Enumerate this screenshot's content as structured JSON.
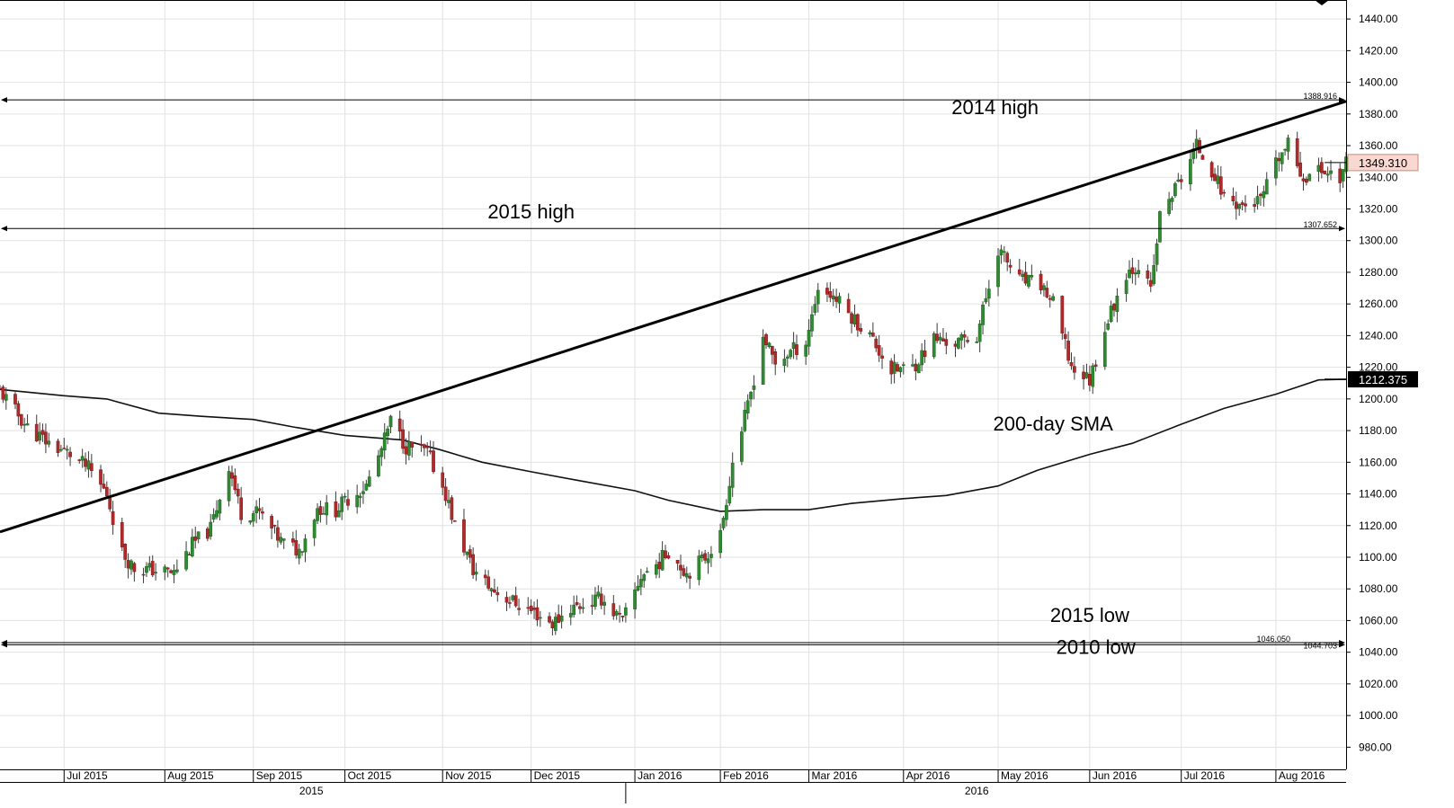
{
  "chart_data": {
    "type": "candlestick",
    "title": "",
    "xlabel": "",
    "ylabel": "",
    "ylim": [
      966,
      1452
    ],
    "y_ticks": [
      980,
      1000,
      1020,
      1040,
      1060,
      1080,
      1100,
      1120,
      1140,
      1160,
      1180,
      1200,
      1220,
      1240,
      1260,
      1280,
      1300,
      1320,
      1340,
      1360,
      1380,
      1400,
      1420,
      1440
    ],
    "y_tick_labels": [
      "980.00",
      "1000.00",
      "1020.00",
      "1040.00",
      "1060.00",
      "1080.00",
      "1100.00",
      "1120.00",
      "1140.00",
      "1160.00",
      "1180.00",
      "1200.00",
      "1220.00",
      "1240.00",
      "1260.00",
      "1280.00",
      "1300.00",
      "1320.00",
      "1340.00",
      "1360.00",
      "1380.00",
      "1400.00",
      "1420.00",
      "1440.00"
    ],
    "x_range": [
      "2015-06-10",
      "2016-08-24"
    ],
    "month_labels": [
      {
        "date": "2015-07-01",
        "label": "Jul 2015"
      },
      {
        "date": "2015-08-03",
        "label": "Aug 2015"
      },
      {
        "date": "2015-09-01",
        "label": "Sep 2015"
      },
      {
        "date": "2015-10-01",
        "label": "Oct 2015"
      },
      {
        "date": "2015-11-02",
        "label": "Nov 2015"
      },
      {
        "date": "2015-12-01",
        "label": "Dec 2015"
      },
      {
        "date": "2016-01-04",
        "label": "Jan 2016"
      },
      {
        "date": "2016-02-01",
        "label": "Feb 2016"
      },
      {
        "date": "2016-03-01",
        "label": "Mar 2016"
      },
      {
        "date": "2016-04-01",
        "label": "Apr 2016"
      },
      {
        "date": "2016-05-02",
        "label": "May 2016"
      },
      {
        "date": "2016-06-01",
        "label": "Jun 2016"
      },
      {
        "date": "2016-07-01",
        "label": "Jul 2016"
      },
      {
        "date": "2016-08-01",
        "label": "Aug 2016"
      }
    ],
    "year_labels": [
      {
        "date": "2015-09-20",
        "label": "2015"
      },
      {
        "date": "2016-04-25",
        "label": "2016"
      }
    ],
    "year_boundary": "2016-01-01",
    "grid": true,
    "current_price": {
      "value": 1349.31,
      "label": "1349.310"
    },
    "sma_price": {
      "value": 1212.375,
      "label": "1212.375"
    },
    "horizontal_levels": [
      {
        "value": 1388.916,
        "label": "1388.916",
        "name": "2014 high"
      },
      {
        "value": 1307.652,
        "label": "1307.652",
        "name": "2015 high"
      },
      {
        "value": 1046.05,
        "label": "1046.050",
        "name": "2015 low"
      },
      {
        "value": 1044.703,
        "label": "1044.703",
        "name": "2010 low"
      }
    ],
    "trendline": {
      "start": {
        "date": "2015-06-10",
        "value": 1116
      },
      "end": {
        "date": "2016-08-24",
        "value": 1388
      }
    },
    "annotations": [
      {
        "text": "2014 high",
        "date": "2016-05-01",
        "value": 1380
      },
      {
        "text": "2015 high",
        "date": "2015-12-01",
        "value": 1314
      },
      {
        "text": "200-day SMA",
        "date": "2016-05-20",
        "value": 1180
      },
      {
        "text": "2015 low",
        "date": "2016-06-01",
        "value": 1059
      },
      {
        "text": "2010 low",
        "date": "2016-06-03",
        "value": 1039
      }
    ],
    "sma": {
      "name": "",
      "points": [
        [
          "2015-06-10",
          1206
        ],
        [
          "2015-07-01",
          1202
        ],
        [
          "2015-07-15",
          1200
        ],
        [
          "2015-08-01",
          1191
        ],
        [
          "2015-08-15",
          1189
        ],
        [
          "2015-09-01",
          1187
        ],
        [
          "2015-09-15",
          1182
        ],
        [
          "2015-10-01",
          1177
        ],
        [
          "2015-10-20",
          1174
        ],
        [
          "2015-11-01",
          1168
        ],
        [
          "2015-11-15",
          1160
        ],
        [
          "2015-12-01",
          1154
        ],
        [
          "2015-12-15",
          1149
        ],
        [
          "2016-01-04",
          1142
        ],
        [
          "2016-01-15",
          1136
        ],
        [
          "2016-02-01",
          1129
        ],
        [
          "2016-02-15",
          1130
        ],
        [
          "2016-03-01",
          1130
        ],
        [
          "2016-03-15",
          1134
        ],
        [
          "2016-04-01",
          1137
        ],
        [
          "2016-04-15",
          1139
        ],
        [
          "2016-05-02",
          1145
        ],
        [
          "2016-05-15",
          1155
        ],
        [
          "2016-06-01",
          1165
        ],
        [
          "2016-06-15",
          1172
        ],
        [
          "2016-07-01",
          1184
        ],
        [
          "2016-07-15",
          1194
        ],
        [
          "2016-08-01",
          1203
        ],
        [
          "2016-08-15",
          1212
        ],
        [
          "2016-08-24",
          1212.4
        ]
      ]
    },
    "candles": {
      "points": [
        [
          "2015-06-10",
          1205
        ],
        [
          "2015-06-19",
          1182
        ],
        [
          "2015-06-26",
          1172
        ],
        [
          "2015-07-03",
          1165
        ],
        [
          "2015-07-09",
          1156
        ],
        [
          "2015-07-15",
          1140
        ],
        [
          "2015-07-20",
          1103
        ],
        [
          "2015-07-24",
          1093
        ],
        [
          "2015-07-30",
          1092
        ],
        [
          "2015-08-06",
          1090
        ],
        [
          "2015-08-12",
          1108
        ],
        [
          "2015-08-18",
          1118
        ],
        [
          "2015-08-24",
          1158
        ],
        [
          "2015-08-28",
          1128
        ],
        [
          "2015-09-03",
          1128
        ],
        [
          "2015-09-10",
          1110
        ],
        [
          "2015-09-16",
          1104
        ],
        [
          "2015-09-22",
          1131
        ],
        [
          "2015-09-28",
          1130
        ],
        [
          "2015-10-02",
          1137
        ],
        [
          "2015-10-08",
          1145
        ],
        [
          "2015-10-13",
          1168
        ],
        [
          "2015-10-16",
          1186
        ],
        [
          "2015-10-21",
          1170
        ],
        [
          "2015-10-28",
          1166
        ],
        [
          "2015-11-03",
          1140
        ],
        [
          "2015-11-06",
          1120
        ],
        [
          "2015-11-12",
          1092
        ],
        [
          "2015-11-18",
          1080
        ],
        [
          "2015-11-25",
          1072
        ],
        [
          "2015-12-02",
          1065
        ],
        [
          "2015-12-08",
          1058
        ],
        [
          "2015-12-14",
          1068
        ],
        [
          "2015-12-18",
          1070
        ],
        [
          "2015-12-24",
          1074
        ],
        [
          "2015-12-31",
          1059
        ],
        [
          "2016-01-06",
          1088
        ],
        [
          "2016-01-11",
          1095
        ],
        [
          "2016-01-15",
          1104
        ],
        [
          "2016-01-21",
          1090
        ],
        [
          "2016-01-27",
          1100
        ],
        [
          "2016-02-01",
          1114
        ],
        [
          "2016-02-05",
          1160
        ],
        [
          "2016-02-10",
          1195
        ],
        [
          "2016-02-15",
          1240
        ],
        [
          "2016-02-19",
          1222
        ],
        [
          "2016-02-24",
          1230
        ],
        [
          "2016-02-29",
          1236
        ],
        [
          "2016-03-04",
          1270
        ],
        [
          "2016-03-09",
          1265
        ],
        [
          "2016-03-15",
          1252
        ],
        [
          "2016-03-21",
          1240
        ],
        [
          "2016-03-28",
          1218
        ],
        [
          "2016-04-04",
          1220
        ],
        [
          "2016-04-11",
          1238
        ],
        [
          "2016-04-18",
          1235
        ],
        [
          "2016-04-25",
          1240
        ],
        [
          "2016-05-02",
          1295
        ],
        [
          "2016-05-09",
          1275
        ],
        [
          "2016-05-16",
          1272
        ],
        [
          "2016-05-20",
          1260
        ],
        [
          "2016-05-26",
          1220
        ],
        [
          "2016-06-01",
          1212
        ],
        [
          "2016-06-06",
          1245
        ],
        [
          "2016-06-13",
          1280
        ],
        [
          "2016-06-17",
          1285
        ],
        [
          "2016-06-21",
          1268
        ],
        [
          "2016-06-24",
          1315
        ],
        [
          "2016-07-01",
          1340
        ],
        [
          "2016-07-06",
          1360
        ],
        [
          "2016-07-11",
          1345
        ],
        [
          "2016-07-15",
          1328
        ],
        [
          "2016-07-21",
          1322
        ],
        [
          "2016-07-27",
          1325
        ],
        [
          "2016-08-02",
          1352
        ],
        [
          "2016-08-05",
          1360
        ],
        [
          "2016-08-10",
          1340
        ],
        [
          "2016-08-16",
          1345
        ],
        [
          "2016-08-22",
          1340
        ],
        [
          "2016-08-24",
          1349
        ]
      ]
    }
  }
}
